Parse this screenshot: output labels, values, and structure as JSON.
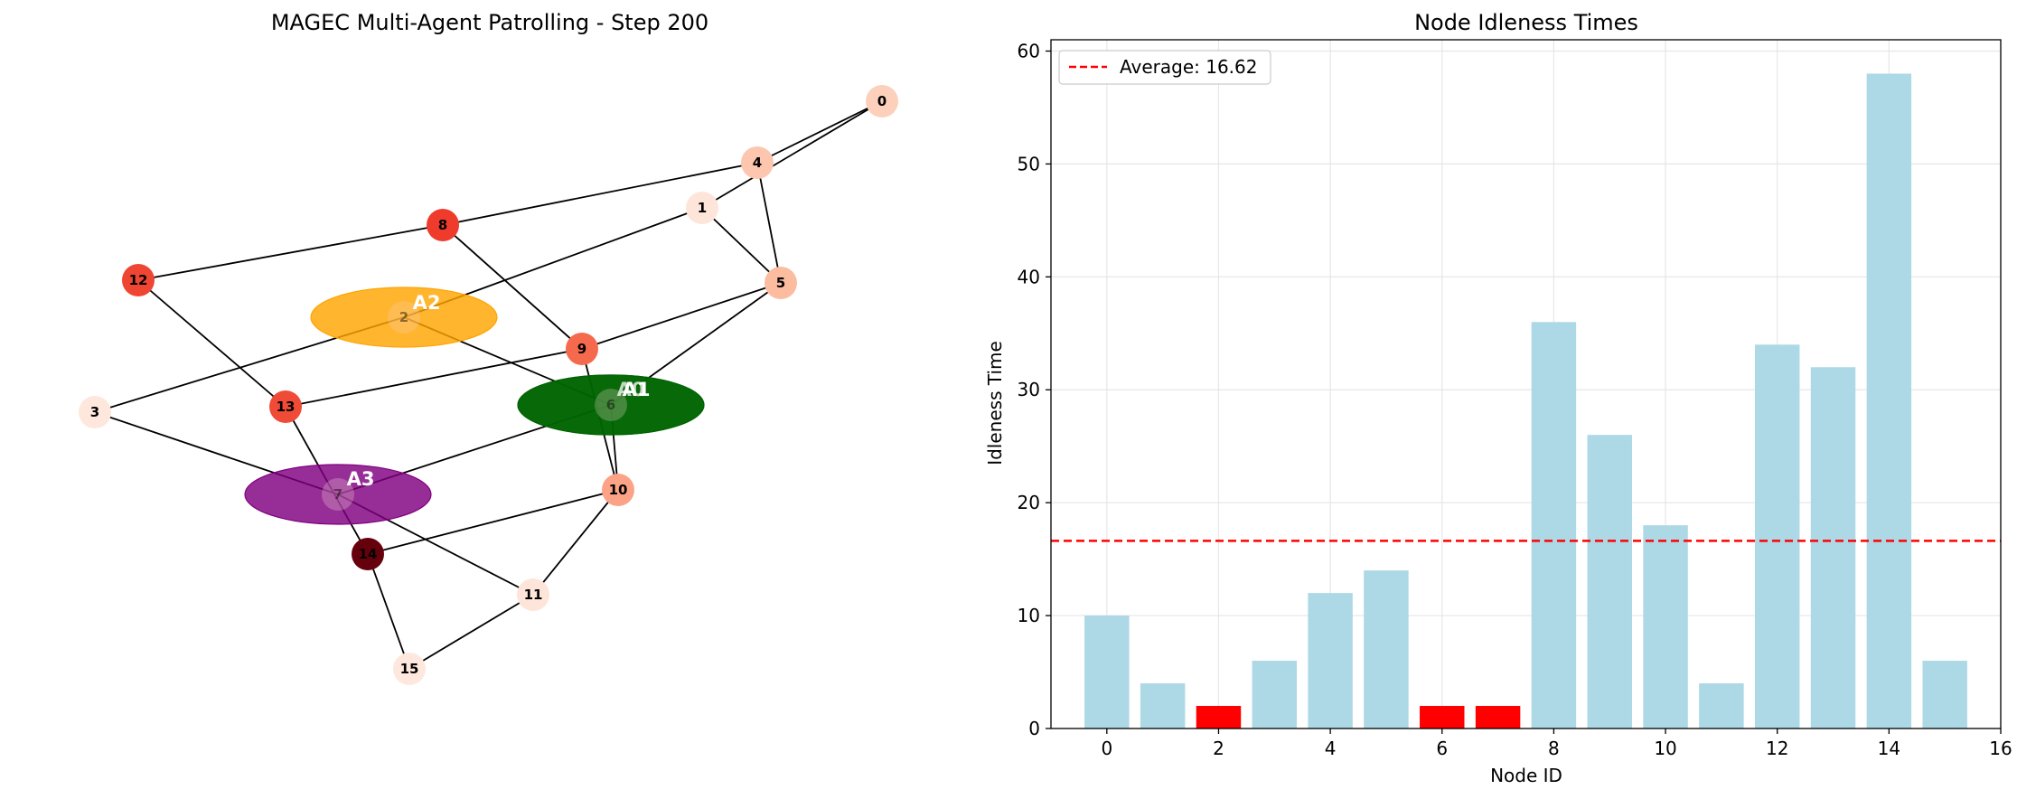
{
  "colors": {
    "bar": "#add8e6",
    "bar_highlight": "#ff0000",
    "average_line": "#ff0000",
    "edge": "#000000"
  },
  "graph_panel": {
    "title": "MAGEC Multi-Agent Patrolling - Step 200",
    "nodes": [
      {
        "id": "0",
        "color": "#fdd0bb"
      },
      {
        "id": "1",
        "color": "#fee5da"
      },
      {
        "id": "2",
        "color": "#fdd4c2"
      },
      {
        "id": "3",
        "color": "#fee8dd"
      },
      {
        "id": "4",
        "color": "#fcc6af"
      },
      {
        "id": "5",
        "color": "#fcbca0"
      },
      {
        "id": "6",
        "color": "#fee7dc"
      },
      {
        "id": "7",
        "color": "#fee7dc"
      },
      {
        "id": "8",
        "color": "#ef3b2c"
      },
      {
        "id": "9",
        "color": "#f5694d"
      },
      {
        "id": "10",
        "color": "#fca387"
      },
      {
        "id": "11",
        "color": "#fee5da"
      },
      {
        "id": "12",
        "color": "#ef4533"
      },
      {
        "id": "13",
        "color": "#f04b36"
      },
      {
        "id": "14",
        "color": "#67000d"
      },
      {
        "id": "15",
        "color": "#fee8dd"
      }
    ],
    "edges": [
      [
        "0",
        "4"
      ],
      [
        "0",
        "1"
      ],
      [
        "4",
        "8"
      ],
      [
        "4",
        "5"
      ],
      [
        "1",
        "5"
      ],
      [
        "1",
        "2"
      ],
      [
        "8",
        "12"
      ],
      [
        "8",
        "9"
      ],
      [
        "12",
        "13"
      ],
      [
        "5",
        "9"
      ],
      [
        "5",
        "6"
      ],
      [
        "2",
        "3"
      ],
      [
        "2",
        "6"
      ],
      [
        "9",
        "13"
      ],
      [
        "9",
        "10"
      ],
      [
        "6",
        "10"
      ],
      [
        "6",
        "7"
      ],
      [
        "3",
        "7"
      ],
      [
        "13",
        "14"
      ],
      [
        "10",
        "14"
      ],
      [
        "10",
        "11"
      ],
      [
        "7",
        "11"
      ],
      [
        "14",
        "15"
      ],
      [
        "15",
        "11"
      ]
    ],
    "agents": [
      {
        "label": "A2",
        "node": "2",
        "color": "#ffa500"
      },
      {
        "label": "A0",
        "node": "6",
        "color": "#006400"
      },
      {
        "label": "A1",
        "node": "6",
        "color": "#006400"
      },
      {
        "label": "A3",
        "node": "7",
        "color": "#800080"
      }
    ]
  },
  "chart_data": {
    "type": "bar",
    "title": "Node Idleness Times",
    "xlabel": "Node ID",
    "ylabel": "Idleness Time",
    "categories": [
      0,
      1,
      2,
      3,
      4,
      5,
      6,
      7,
      8,
      9,
      10,
      11,
      12,
      13,
      14,
      15
    ],
    "values": [
      10,
      4,
      2,
      6,
      12,
      14,
      2,
      2,
      36,
      26,
      18,
      4,
      34,
      32,
      58,
      6
    ],
    "highlighted": [
      2,
      6,
      7
    ],
    "average": 16.62,
    "legend": [
      {
        "label": "Average: 16.62",
        "style": "red dashed line"
      }
    ],
    "legend_position": "top-left",
    "xlim": [
      -1,
      16
    ],
    "ylim": [
      0,
      61
    ],
    "xticks": [
      0,
      2,
      4,
      6,
      8,
      10,
      12,
      14,
      16
    ],
    "yticks": [
      0,
      10,
      20,
      30,
      40,
      50,
      60
    ],
    "grid": true
  }
}
